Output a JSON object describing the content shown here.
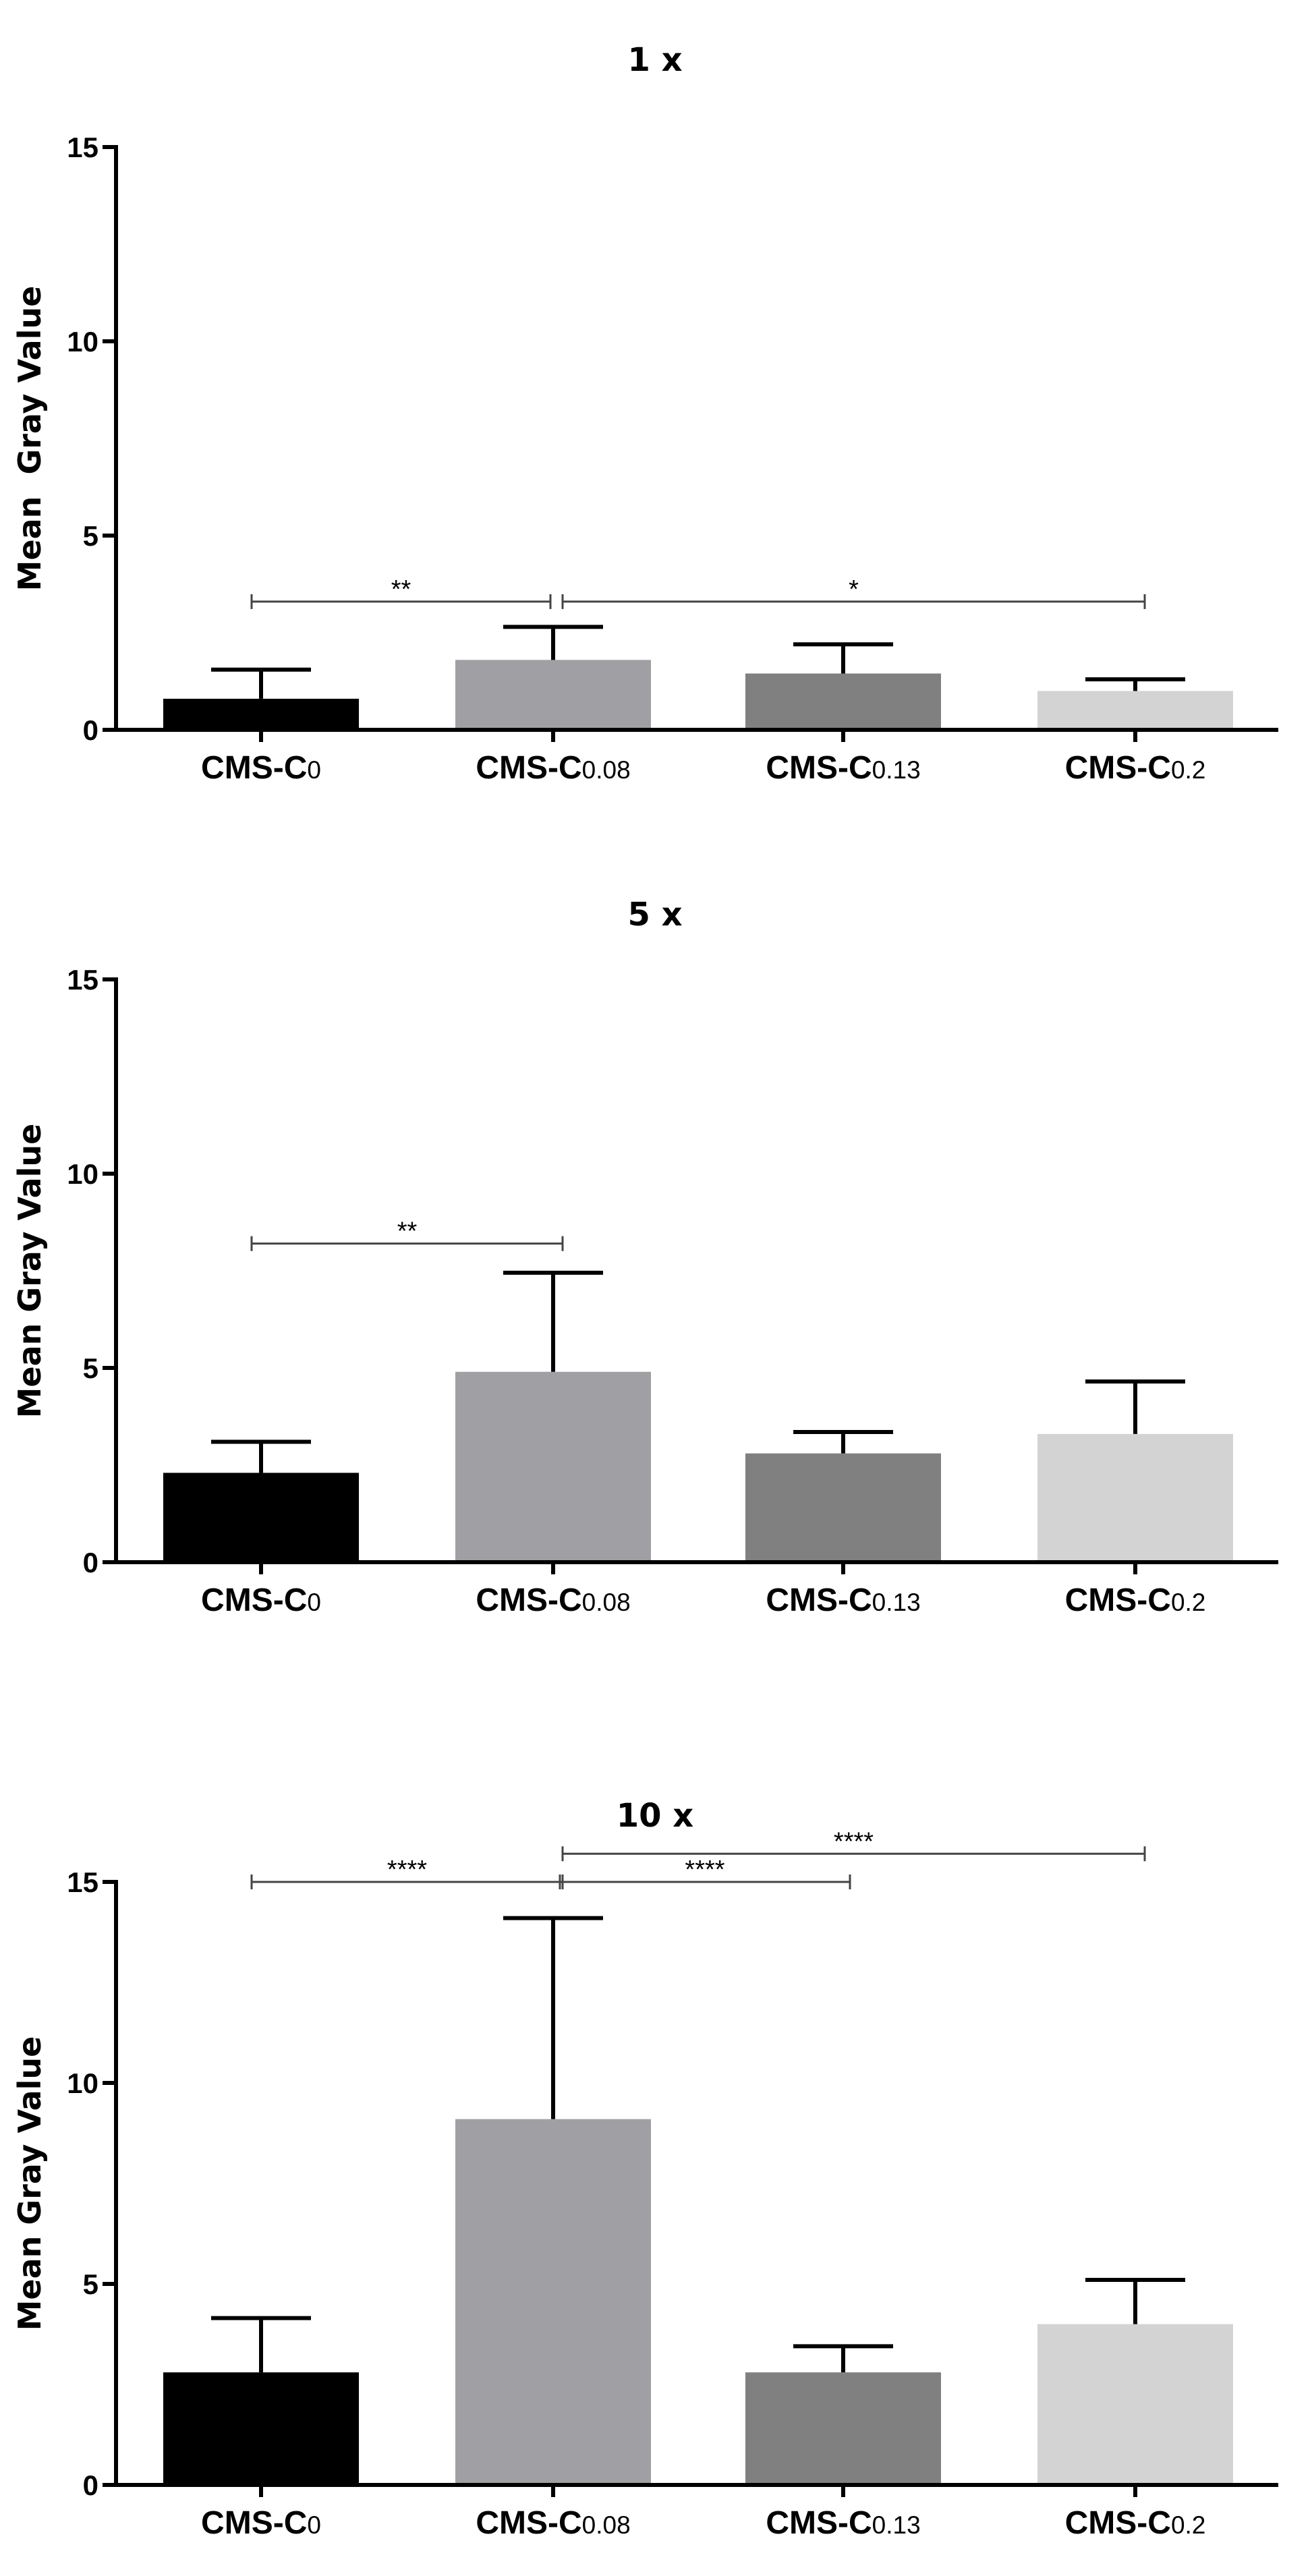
{
  "chart_data": [
    {
      "type": "bar",
      "title": "1 x",
      "ylabel": "Mean  Gray Value",
      "xlabel": "",
      "ylim": [
        0,
        15
      ],
      "yticks": [
        0,
        5,
        10,
        15
      ],
      "categories": [
        {
          "base": "CMS-C",
          "sub": "0"
        },
        {
          "base": "CMS-C",
          "sub": "0.08"
        },
        {
          "base": "CMS-C",
          "sub": "0.13"
        },
        {
          "base": "CMS-C",
          "sub": "0.2"
        }
      ],
      "values": [
        0.8,
        1.8,
        1.45,
        1.0
      ],
      "errors": [
        0.75,
        0.85,
        0.75,
        0.3
      ],
      "colors": [
        "#000000",
        "#a0a0a4",
        "#808080",
        "#d3d3d3"
      ],
      "significance": [
        {
          "from": 0,
          "to": 1,
          "label": "**",
          "y": 3.3
        },
        {
          "from": 1,
          "to": 3,
          "label": "*",
          "y": 3.3
        }
      ]
    },
    {
      "type": "bar",
      "title": "5 x",
      "ylabel": "Mean Gray Value",
      "xlabel": "",
      "ylim": [
        0,
        15
      ],
      "yticks": [
        0,
        5,
        10,
        15
      ],
      "categories": [
        {
          "base": "CMS-C",
          "sub": "0"
        },
        {
          "base": "CMS-C",
          "sub": "0.08"
        },
        {
          "base": "CMS-C",
          "sub": "0.13"
        },
        {
          "base": "CMS-C",
          "sub": "0.2"
        }
      ],
      "values": [
        2.3,
        4.9,
        2.8,
        3.3
      ],
      "errors": [
        0.8,
        2.55,
        0.55,
        1.35
      ],
      "colors": [
        "#000000",
        "#a0a0a4",
        "#808080",
        "#d3d3d3"
      ],
      "significance": [
        {
          "from": 0,
          "to": 1,
          "label": "**",
          "y": 8.2
        }
      ]
    },
    {
      "type": "bar",
      "title": "10 x",
      "ylabel": "Mean Gray Value",
      "xlabel": "",
      "ylim": [
        0,
        15
      ],
      "yticks": [
        0,
        5,
        10,
        15
      ],
      "categories": [
        {
          "base": "CMS-C",
          "sub": "0"
        },
        {
          "base": "CMS-C",
          "sub": "0.08"
        },
        {
          "base": "CMS-C",
          "sub": "0.13"
        },
        {
          "base": "CMS-C",
          "sub": "0.2"
        }
      ],
      "values": [
        2.8,
        9.1,
        2.8,
        4.0
      ],
      "errors": [
        1.35,
        5.0,
        0.65,
        1.1
      ],
      "colors": [
        "#000000",
        "#a0a0a4",
        "#808080",
        "#d3d3d3"
      ],
      "significance": [
        {
          "from": 0,
          "to": 1,
          "label": "****",
          "y": 15.0
        },
        {
          "from": 1,
          "to": 2,
          "label": "****",
          "y": 15.0
        },
        {
          "from": 1,
          "to": 3,
          "label": "****",
          "y": 15.7
        }
      ]
    }
  ]
}
